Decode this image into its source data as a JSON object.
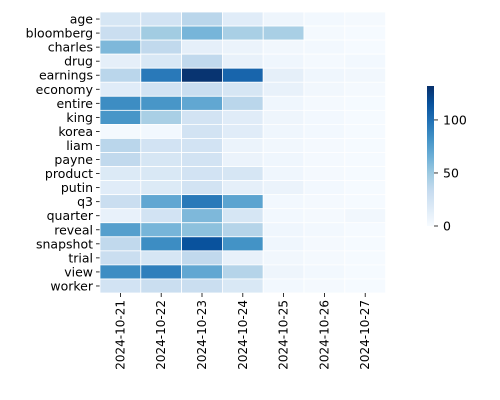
{
  "chart_data": {
    "type": "heatmap",
    "title": "",
    "xlabel": "",
    "ylabel": "",
    "rows": [
      "age",
      "bloomberg",
      "charles",
      "drug",
      "earnings",
      "economy",
      "entire",
      "king",
      "korea",
      "liam",
      "payne",
      "product",
      "putin",
      "q3",
      "quarter",
      "reveal",
      "snapshot",
      "trial",
      "view",
      "worker"
    ],
    "columns": [
      "2024-10-21",
      "2024-10-22",
      "2024-10-23",
      "2024-10-24",
      "2024-10-25",
      "2024-10-26",
      "2024-10-27"
    ],
    "values": [
      [
        22,
        25,
        38,
        15,
        6,
        3,
        2
      ],
      [
        30,
        48,
        62,
        45,
        45,
        2,
        1
      ],
      [
        60,
        35,
        12,
        8,
        4,
        3,
        1
      ],
      [
        12,
        20,
        35,
        10,
        5,
        2,
        3
      ],
      [
        38,
        95,
        130,
        105,
        12,
        5,
        4
      ],
      [
        15,
        25,
        30,
        22,
        10,
        4,
        2
      ],
      [
        85,
        80,
        70,
        38,
        5,
        2,
        1
      ],
      [
        80,
        45,
        25,
        15,
        6,
        3,
        1
      ],
      [
        2,
        3,
        25,
        15,
        5,
        3,
        1
      ],
      [
        38,
        25,
        25,
        8,
        4,
        2,
        1
      ],
      [
        35,
        22,
        25,
        8,
        5,
        2,
        1
      ],
      [
        18,
        20,
        25,
        22,
        5,
        2,
        1
      ],
      [
        15,
        18,
        25,
        12,
        8,
        3,
        1
      ],
      [
        30,
        70,
        95,
        72,
        3,
        2,
        1
      ],
      [
        10,
        25,
        60,
        22,
        3,
        2,
        4
      ],
      [
        75,
        62,
        55,
        40,
        5,
        3,
        1
      ],
      [
        35,
        85,
        115,
        82,
        5,
        2,
        1
      ],
      [
        30,
        22,
        35,
        10,
        4,
        2,
        1
      ],
      [
        85,
        92,
        70,
        40,
        6,
        3,
        1
      ],
      [
        25,
        30,
        30,
        20,
        3,
        2,
        1
      ]
    ],
    "vmin": 0,
    "vmax": 132,
    "colormap": "Blues",
    "colorbar_ticks": [
      "0",
      "50",
      "100"
    ],
    "colorbar_tick_values": [
      0,
      50,
      100
    ]
  }
}
